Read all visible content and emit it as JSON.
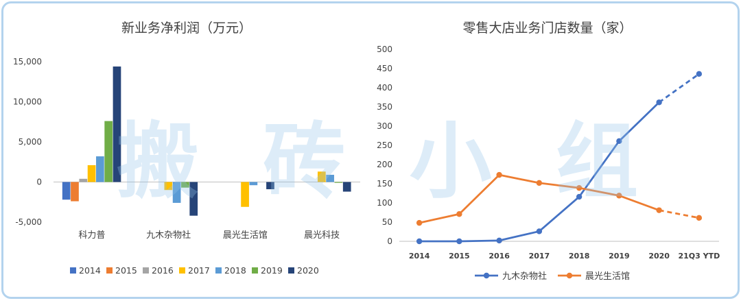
{
  "watermark": [
    "搬",
    "砖",
    "小",
    "组"
  ],
  "colors": {
    "border": "#b3d3ee",
    "watermark": "#96c3e8",
    "y2014": "#4472c4",
    "y2015": "#ed7d31",
    "y2016": "#a5a5a5",
    "y2017": "#ffc000",
    "y2018": "#5b9bd5",
    "y2019": "#70ad47",
    "y2020": "#264478",
    "line_jiumu": "#4472c4",
    "line_chenguang": "#ed7d31"
  },
  "chart_data": [
    {
      "type": "bar",
      "title": "新业务净利润（万元）",
      "categories": [
        "科力普",
        "九木杂物社",
        "晨光生活馆",
        "晨光科技"
      ],
      "series": [
        {
          "name": "2014",
          "color": "#4472c4",
          "values": [
            -2200,
            0,
            0,
            0
          ]
        },
        {
          "name": "2015",
          "color": "#ed7d31",
          "values": [
            -2400,
            0,
            0,
            0
          ]
        },
        {
          "name": "2016",
          "color": "#a5a5a5",
          "values": [
            400,
            0,
            0,
            0
          ]
        },
        {
          "name": "2017",
          "color": "#ffc000",
          "values": [
            2100,
            -1000,
            -3100,
            1300
          ]
        },
        {
          "name": "2018",
          "color": "#5b9bd5",
          "values": [
            3200,
            -2600,
            -400,
            900
          ]
        },
        {
          "name": "2019",
          "color": "#70ad47",
          "values": [
            7600,
            -700,
            0,
            -100
          ]
        },
        {
          "name": "2020",
          "color": "#264478",
          "values": [
            14400,
            -4200,
            -900,
            -1200
          ]
        }
      ],
      "yticks": [
        -5000,
        0,
        5000,
        10000,
        15000
      ],
      "ytick_labels": [
        "-5,000",
        "0",
        "5,000",
        "10,000",
        "15,000"
      ],
      "ylim": [
        -5000,
        15000
      ],
      "xlabel": "",
      "ylabel": "",
      "legend": "bottom",
      "grid": false
    },
    {
      "type": "line",
      "title": "零售大店业务门店数量（家）",
      "x": [
        "2014",
        "2015",
        "2016",
        "2017",
        "2018",
        "2019",
        "2020",
        "21Q3 YTD"
      ],
      "series": [
        {
          "name": "九木杂物社",
          "color": "#4472c4",
          "values": [
            0,
            0,
            2,
            26,
            116,
            261,
            362,
            436
          ],
          "dashed_last_segment": true
        },
        {
          "name": "晨光生活馆",
          "color": "#ed7d31",
          "values": [
            48,
            71,
            173,
            152,
            139,
            119,
            81,
            61
          ],
          "dashed_last_segment": true
        }
      ],
      "yticks": [
        0,
        50,
        100,
        150,
        200,
        250,
        300,
        350,
        400,
        450,
        500
      ],
      "ylim": [
        0,
        500
      ],
      "xlabel": "",
      "ylabel": "",
      "legend": "bottom",
      "grid": false
    }
  ]
}
